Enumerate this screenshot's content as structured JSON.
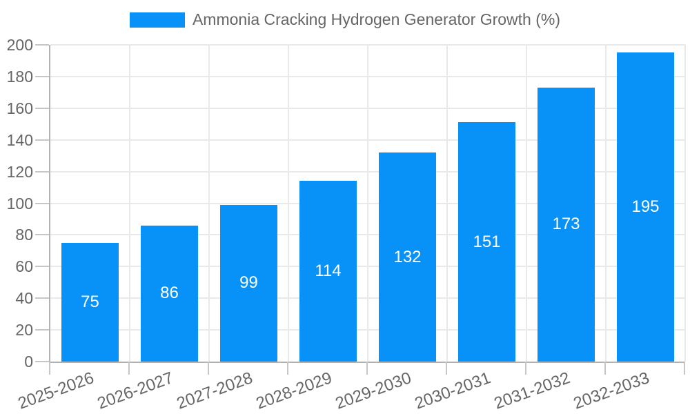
{
  "chart_data": {
    "type": "bar",
    "title": "Ammonia Cracking Hydrogen Generator Growth (%)",
    "legend": {
      "label": "Ammonia Cracking Hydrogen Generator Growth (%)",
      "position": "top"
    },
    "categories": [
      "2025-2026",
      "2026-2027",
      "2027-2028",
      "2028-2029",
      "2029-2030",
      "2030-2031",
      "2031-2032",
      "2032-2033"
    ],
    "values": [
      75,
      86,
      99,
      114,
      132,
      151,
      173,
      195
    ],
    "xlabel": "",
    "ylabel": "",
    "ylim": [
      0,
      200
    ],
    "yticks": [
      0,
      20,
      40,
      60,
      80,
      100,
      120,
      140,
      160,
      180,
      200
    ],
    "grid": true,
    "bar_labels_inside": true,
    "colors": {
      "bar": "#0892f8",
      "bar_label_text": "#ffffff",
      "axis_text": "#666666",
      "grid_line": "#e9e9e9",
      "axis_line": "#b3b3b3",
      "tick_line": "#c6c6c6",
      "background": "#ffffff"
    }
  }
}
